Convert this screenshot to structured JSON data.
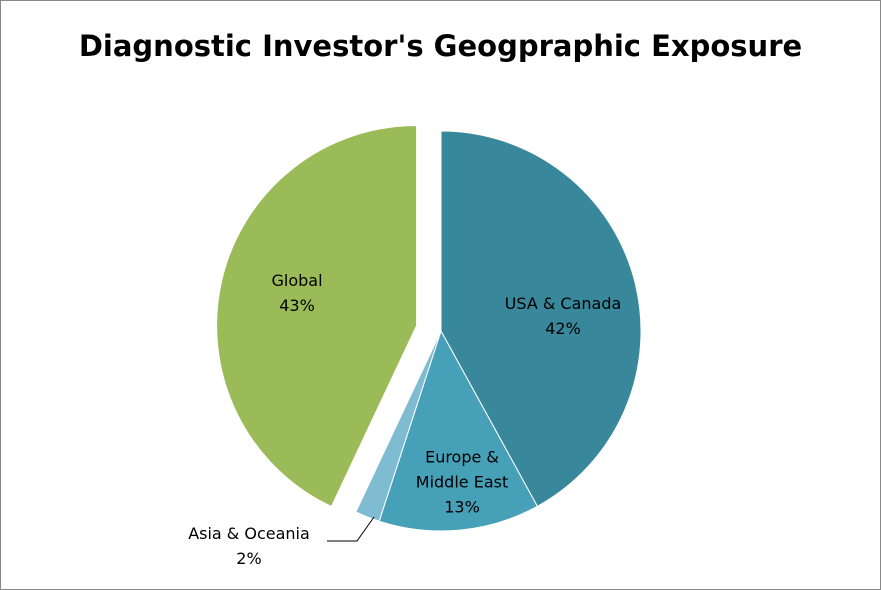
{
  "chart_data": {
    "type": "pie",
    "title": "Diagnostic Investor's Geogpraphic Exposure",
    "categories": [
      "USA & Canada",
      "Europe & Middle East",
      "Asia & Oceania",
      "Global"
    ],
    "values": [
      42,
      13,
      2,
      43
    ],
    "value_labels": [
      "42%",
      "13%",
      "2%",
      "43%"
    ],
    "colors": [
      "#38879b",
      "#46a0b7",
      "#7fbcd1",
      "#9bbb59"
    ],
    "exploded": [
      false,
      false,
      false,
      true
    ]
  }
}
